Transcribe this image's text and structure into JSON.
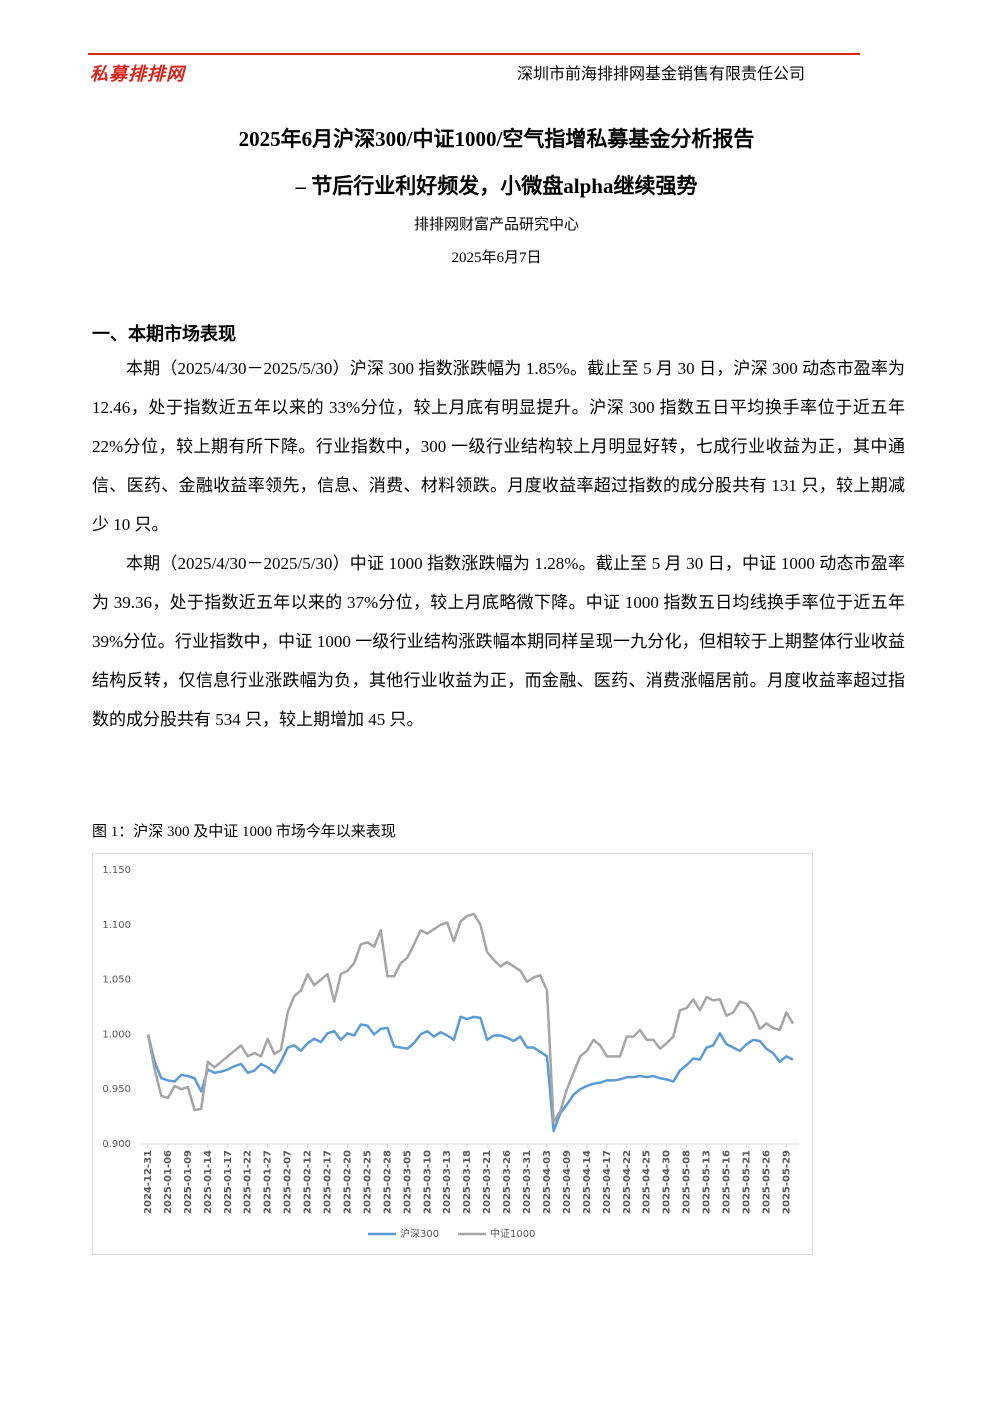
{
  "header": {
    "logo": "私募排排网",
    "company": "深圳市前海排排网基金销售有限责任公司"
  },
  "title": {
    "line1": "2025年6月沪深300/中证1000/空气指增私募基金分析报告",
    "line2": "– 节后行业利好频发，小微盘alpha继续强势"
  },
  "author": "排排网财富产品研究中心",
  "date": "2025年6月7日",
  "section": {
    "heading": "一、本期市场表现",
    "paragraphs": [
      "本期（2025/4/30－2025/5/30）沪深 300 指数涨跌幅为 1.85%。截止至 5 月 30 日，沪深 300 动态市盈率为 12.46，处于指数近五年以来的 33%分位，较上月底有明显提升。沪深 300 指数五日平均换手率位于近五年 22%分位，较上期有所下降。行业指数中，300 一级行业结构较上月明显好转，七成行业收益为正，其中通信、医药、金融收益率领先，信息、消费、材料领跌。月度收益率超过指数的成分股共有 131 只，较上期减少 10 只。",
      "本期（2025/4/30－2025/5/30）中证 1000 指数涨跌幅为 1.28%。截止至 5 月 30 日，中证 1000 动态市盈率为 39.36，处于指数近五年以来的 37%分位，较上月底略微下降。中证 1000 指数五日均线换手率位于近五年 39%分位。行业指数中，中证 1000 一级行业结构涨跌幅本期同样呈现一九分化，但相较于上期整体行业收益结构反转，仅信息行业涨跌幅为负，其他行业收益为正，而金融、医药、消费涨幅居前。月度收益率超过指数的成分股共有 534 只，较上期增加 45 只。"
    ]
  },
  "figure_caption": "图 1：沪深 300 及中证 1000 市场今年以来表现",
  "chart_data": {
    "type": "line",
    "categories": [
      "2024-12-31",
      null,
      null,
      "2025-01-06",
      null,
      null,
      "2025-01-09",
      null,
      null,
      "2025-01-14",
      null,
      null,
      "2025-01-17",
      null,
      null,
      "2025-01-22",
      null,
      null,
      "2025-01-27",
      null,
      null,
      "2025-02-07",
      null,
      null,
      "2025-02-12",
      null,
      null,
      "2025-02-17",
      null,
      null,
      "2025-02-20",
      null,
      null,
      "2025-02-25",
      null,
      null,
      "2025-02-28",
      null,
      null,
      "2025-03-05",
      null,
      null,
      "2025-03-10",
      null,
      null,
      "2025-03-13",
      null,
      null,
      "2025-03-18",
      null,
      null,
      "2025-03-21",
      null,
      null,
      "2025-03-26",
      null,
      null,
      "2025-03-31",
      null,
      null,
      "2025-04-03",
      null,
      null,
      "2025-04-09",
      null,
      null,
      "2025-04-14",
      null,
      null,
      "2025-04-17",
      null,
      null,
      "2025-04-22",
      null,
      null,
      "2025-04-25",
      null,
      null,
      "2025-04-30",
      null,
      null,
      "2025-05-08",
      null,
      null,
      "2025-05-13",
      null,
      null,
      "2025-05-16",
      null,
      null,
      "2025-05-21",
      null,
      null,
      "2025-05-26",
      null,
      null,
      "2025-05-29",
      null
    ],
    "series": [
      {
        "name": "沪深300",
        "color": "#5b9bd5",
        "values": [
          1.0,
          0.975,
          0.96,
          0.958,
          0.957,
          0.963,
          0.962,
          0.96,
          0.948,
          0.968,
          0.965,
          0.966,
          0.968,
          0.971,
          0.973,
          0.965,
          0.967,
          0.973,
          0.97,
          0.965,
          0.975,
          0.988,
          0.99,
          0.985,
          0.992,
          0.996,
          0.993,
          1.001,
          1.003,
          0.995,
          1.001,
          0.999,
          1.009,
          1.008,
          1.0,
          1.005,
          1.006,
          0.989,
          0.988,
          0.987,
          0.992,
          1.0,
          1.003,
          0.998,
          1.002,
          0.999,
          0.995,
          1.016,
          1.014,
          1.016,
          1.015,
          0.995,
          0.999,
          0.999,
          0.997,
          0.994,
          0.998,
          0.988,
          0.988,
          0.984,
          0.98,
          0.912,
          0.928,
          0.936,
          0.945,
          0.95,
          0.953,
          0.955,
          0.956,
          0.958,
          0.958,
          0.959,
          0.961,
          0.961,
          0.962,
          0.961,
          0.962,
          0.96,
          0.959,
          0.957,
          0.967,
          0.972,
          0.978,
          0.977,
          0.988,
          0.99,
          1.001,
          0.991,
          0.988,
          0.985,
          0.991,
          0.995,
          0.994,
          0.987,
          0.983,
          0.975,
          0.98,
          0.977
        ]
      },
      {
        "name": "中证1000",
        "color": "#a5a5a5",
        "values": [
          1.0,
          0.968,
          0.944,
          0.942,
          0.953,
          0.95,
          0.952,
          0.931,
          0.932,
          0.975,
          0.97,
          0.975,
          0.98,
          0.985,
          0.99,
          0.98,
          0.983,
          0.98,
          0.996,
          0.982,
          0.986,
          1.02,
          1.035,
          1.04,
          1.055,
          1.045,
          1.05,
          1.055,
          1.03,
          1.055,
          1.058,
          1.065,
          1.082,
          1.084,
          1.08,
          1.095,
          1.053,
          1.053,
          1.065,
          1.07,
          1.082,
          1.095,
          1.092,
          1.096,
          1.1,
          1.102,
          1.085,
          1.103,
          1.108,
          1.11,
          1.1,
          1.075,
          1.068,
          1.062,
          1.066,
          1.062,
          1.058,
          1.048,
          1.052,
          1.054,
          1.04,
          0.92,
          0.93,
          0.95,
          0.965,
          0.98,
          0.985,
          0.995,
          0.99,
          0.98,
          0.98,
          0.98,
          0.998,
          0.998,
          1.004,
          0.995,
          0.995,
          0.987,
          0.992,
          0.998,
          1.022,
          1.024,
          1.032,
          1.022,
          1.034,
          1.031,
          1.032,
          1.017,
          1.02,
          1.03,
          1.028,
          1.02,
          1.005,
          1.01,
          1.006,
          1.004,
          1.02,
          1.01
        ]
      }
    ],
    "ylim": [
      0.9,
      1.15
    ],
    "yticks": [
      {
        "value": 0.9,
        "label": "0.900"
      },
      {
        "value": 0.95,
        "label": "0.950"
      },
      {
        "value": 1.0,
        "label": "1.000"
      },
      {
        "value": 1.05,
        "label": "1.050"
      },
      {
        "value": 1.1,
        "label": "1.100"
      },
      {
        "value": 1.15,
        "label": "1.150"
      }
    ],
    "grid": false,
    "legend": "bottom"
  }
}
